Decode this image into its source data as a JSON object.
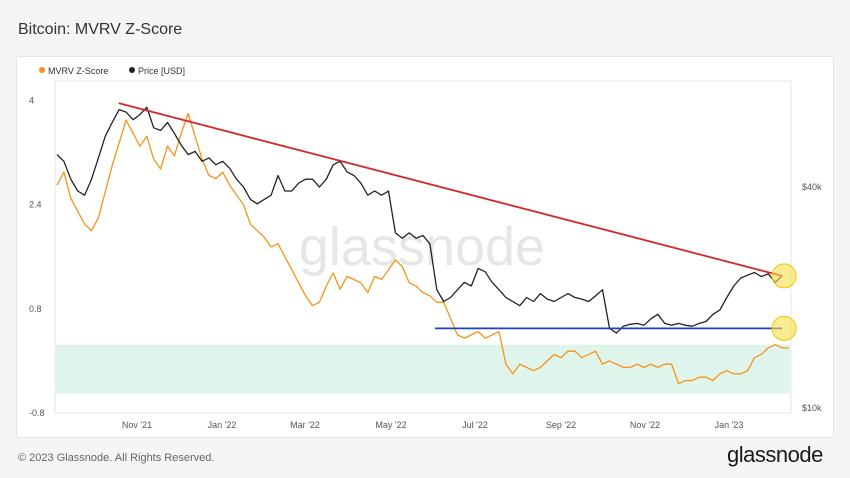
{
  "page": {
    "title": "Bitcoin: MVRV Z-Score",
    "footer": "© 2023 Glassnode. All Rights Reserved.",
    "logo": "glassnode",
    "watermark": "glassnode"
  },
  "chart_data": {
    "type": "line",
    "legend_placement": "top-left",
    "grid": false,
    "x_ticks": [
      "Nov '21",
      "Jan '22",
      "Mar '22",
      "May '22",
      "Jul '22",
      "Sep '22",
      "Nov '22",
      "Jan '23"
    ],
    "y_left": {
      "ticks": [
        "4",
        "2.4",
        "0.8",
        "-0.8"
      ],
      "lim": [
        -0.8,
        4.3
      ]
    },
    "y_right": {
      "ticks": [
        "$40k",
        "$10k"
      ],
      "scale": "log"
    },
    "series": [
      {
        "name": "MVRV Z-Score",
        "color": "#f7931a",
        "axis": "left",
        "values": [
          2.7,
          2.9,
          2.5,
          2.3,
          2.1,
          2.0,
          2.2,
          2.6,
          3.0,
          3.35,
          3.7,
          3.5,
          3.3,
          3.45,
          3.1,
          2.95,
          3.3,
          3.15,
          3.5,
          3.8,
          3.45,
          3.1,
          2.85,
          2.8,
          2.9,
          2.7,
          2.55,
          2.4,
          2.1,
          2.0,
          1.9,
          1.75,
          1.8,
          1.6,
          1.4,
          1.2,
          1.0,
          0.85,
          0.9,
          1.15,
          1.35,
          1.1,
          1.3,
          1.25,
          1.2,
          1.05,
          1.3,
          1.25,
          1.4,
          1.55,
          1.45,
          1.2,
          1.15,
          1.05,
          1.0,
          0.9,
          0.9,
          0.65,
          0.4,
          0.35,
          0.4,
          0.45,
          0.35,
          0.4,
          0.45,
          -0.05,
          -0.2,
          -0.05,
          -0.1,
          -0.15,
          -0.1,
          0.0,
          0.1,
          0.05,
          0.15,
          0.15,
          0.05,
          0.1,
          0.15,
          -0.05,
          0.0,
          -0.05,
          -0.1,
          -0.1,
          -0.05,
          -0.1,
          -0.05,
          -0.1,
          -0.05,
          -0.05,
          -0.35,
          -0.3,
          -0.3,
          -0.25,
          -0.25,
          -0.3,
          -0.2,
          -0.15,
          -0.2,
          -0.2,
          -0.15,
          0.05,
          0.1,
          0.2,
          0.25,
          0.2,
          0.2
        ]
      },
      {
        "name": "Price [USD]",
        "color": "#222222",
        "axis": "right",
        "values": [
          49000,
          47000,
          42000,
          39000,
          38000,
          42000,
          48000,
          55000,
          60000,
          65000,
          64000,
          61000,
          63000,
          66000,
          58000,
          57000,
          60000,
          56000,
          52000,
          49000,
          50000,
          47000,
          48000,
          46000,
          47000,
          45000,
          42000,
          40000,
          37000,
          36000,
          37000,
          38000,
          43000,
          39000,
          39000,
          41000,
          42000,
          42000,
          40000,
          42000,
          46000,
          47000,
          44000,
          43000,
          41000,
          38000,
          39000,
          38000,
          39000,
          30000,
          29000,
          30000,
          29000,
          29500,
          28000,
          21000,
          19500,
          20000,
          21000,
          22000,
          21500,
          24000,
          23500,
          22000,
          21000,
          20000,
          19500,
          19000,
          20000,
          19500,
          20500,
          19800,
          19500,
          20000,
          20500,
          20000,
          19800,
          19500,
          20200,
          21000,
          16500,
          16000,
          16700,
          16900,
          17000,
          16800,
          17500,
          18000,
          17000,
          16800,
          17000,
          16800,
          16700,
          17000,
          17200,
          18000,
          18500,
          20000,
          21500,
          22600,
          23000,
          23400,
          22800,
          23200,
          22000,
          22900
        ]
      }
    ],
    "annotations": [
      {
        "type": "trendline",
        "color": "#d62728",
        "from": "Nov '21 price high",
        "to": "Feb '23 price"
      },
      {
        "type": "hline",
        "color": "#1f3fbf",
        "axis": "left",
        "value": 0.5
      },
      {
        "type": "band",
        "color": "#d9f2e6",
        "axis": "left",
        "range": [
          -0.5,
          0.25
        ]
      },
      {
        "type": "highlight-circle",
        "color": "#f9e04b"
      }
    ]
  }
}
